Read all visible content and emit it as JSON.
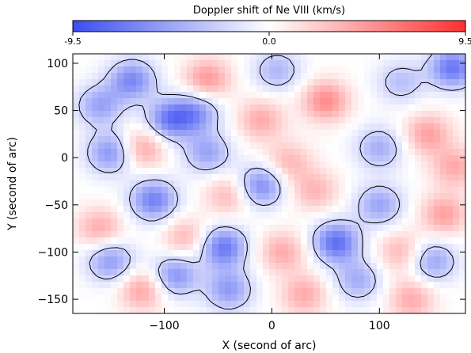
{
  "chart_data": {
    "type": "heatmap",
    "title": "Doppler shift of Ne VIII (km/s)",
    "colorbar": {
      "min": -9.5,
      "max": 9.5,
      "tick_labels": [
        "-9.5",
        "0.0",
        "9.5"
      ],
      "colors": {
        "low": "#3a4df0",
        "mid": "#ffffff",
        "high": "#ff3030"
      }
    },
    "xlabel": "X (second of arc)",
    "ylabel": "Y (second of arc)",
    "xlim": [
      -185,
      180
    ],
    "ylim": [
      -165,
      110
    ],
    "x_ticks": [
      -100,
      0,
      100
    ],
    "x_tick_labels": [
      "−100",
      "0",
      "100"
    ],
    "y_ticks": [
      100,
      50,
      0,
      -50,
      -100,
      -150
    ],
    "y_tick_labels": [
      "100",
      "50",
      "0",
      "−50",
      "−100",
      "−150"
    ],
    "grid": false,
    "contour_color": "#000000",
    "features": [
      {
        "x": -130,
        "y": 82,
        "v": -6.5
      },
      {
        "x": -60,
        "y": 83,
        "v": 5.0
      },
      {
        "x": 5,
        "y": 92,
        "v": -4.0
      },
      {
        "x": 120,
        "y": 80,
        "v": -3.5
      },
      {
        "x": 168,
        "y": 95,
        "v": -7.5
      },
      {
        "x": -160,
        "y": 55,
        "v": -5.0
      },
      {
        "x": -95,
        "y": 40,
        "v": -7.0
      },
      {
        "x": -70,
        "y": 48,
        "v": -5.5
      },
      {
        "x": -10,
        "y": 40,
        "v": 4.0
      },
      {
        "x": 50,
        "y": 60,
        "v": 5.5
      },
      {
        "x": 145,
        "y": 25,
        "v": 4.5
      },
      {
        "x": -150,
        "y": 5,
        "v": -6.0
      },
      {
        "x": -120,
        "y": 10,
        "v": 4.5
      },
      {
        "x": -60,
        "y": 5,
        "v": -5.0
      },
      {
        "x": 15,
        "y": -5,
        "v": 3.5
      },
      {
        "x": 100,
        "y": 10,
        "v": -4.5
      },
      {
        "x": 170,
        "y": -10,
        "v": 4.0
      },
      {
        "x": -110,
        "y": -45,
        "v": -7.0
      },
      {
        "x": -40,
        "y": -40,
        "v": 3.5
      },
      {
        "x": -10,
        "y": -30,
        "v": -6.5
      },
      {
        "x": 40,
        "y": -35,
        "v": 3.5
      },
      {
        "x": 100,
        "y": -50,
        "v": -5.0
      },
      {
        "x": 160,
        "y": -60,
        "v": 4.5
      },
      {
        "x": -160,
        "y": -75,
        "v": 4.0
      },
      {
        "x": -150,
        "y": -110,
        "v": -5.5
      },
      {
        "x": -80,
        "y": -85,
        "v": 3.5
      },
      {
        "x": -45,
        "y": -95,
        "v": -7.5
      },
      {
        "x": 10,
        "y": -100,
        "v": 4.0
      },
      {
        "x": 60,
        "y": -90,
        "v": -8.0
      },
      {
        "x": 120,
        "y": -100,
        "v": 3.5
      },
      {
        "x": 150,
        "y": -110,
        "v": -5.0
      },
      {
        "x": -120,
        "y": -140,
        "v": 4.5
      },
      {
        "x": -90,
        "y": -125,
        "v": -6.0
      },
      {
        "x": -40,
        "y": -140,
        "v": -5.5
      },
      {
        "x": 30,
        "y": -145,
        "v": 4.0
      },
      {
        "x": 80,
        "y": -130,
        "v": -4.5
      },
      {
        "x": 130,
        "y": -150,
        "v": 4.0
      }
    ]
  }
}
